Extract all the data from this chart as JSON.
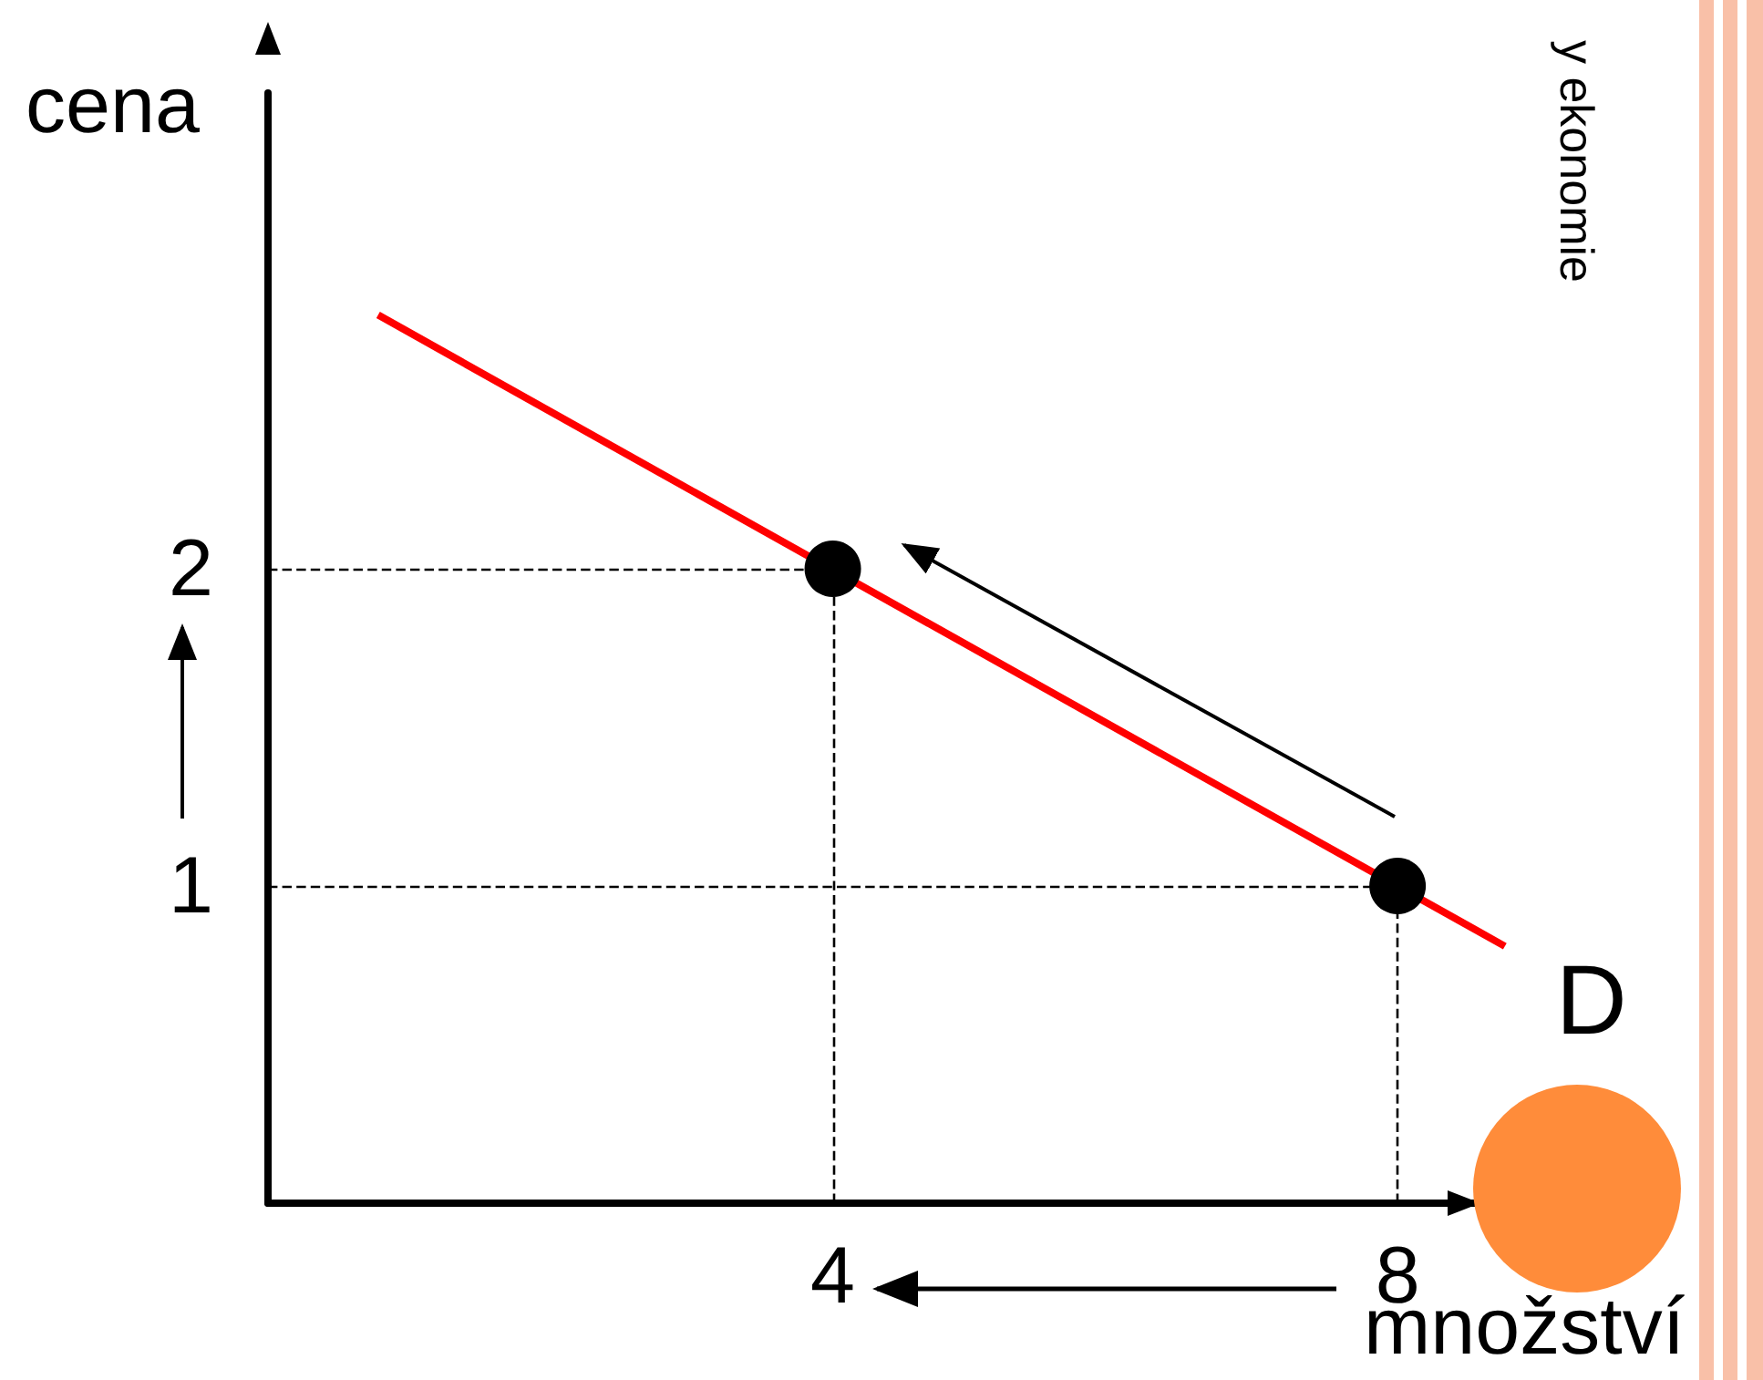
{
  "chart_data": {
    "type": "line",
    "xlabel": "množství",
    "ylabel": "cena",
    "xlim": [
      0,
      9
    ],
    "ylim": [
      0,
      3.5
    ],
    "xticks": [
      4,
      8
    ],
    "yticks": [
      1,
      2
    ],
    "grid": false,
    "legend": false,
    "marker": "none",
    "series": [
      {
        "name": "D",
        "color": "#ff0000",
        "x": [
          0.78,
          8.76
        ],
        "values": [
          2.8,
          0.81
        ]
      },
      {
        "type": "scatter",
        "marker": "circle",
        "color": "#000000",
        "x": [
          4,
          8
        ],
        "values": [
          2,
          1
        ]
      }
    ],
    "ref_lines": [
      {
        "axis": "x",
        "value": 4,
        "line_style": "dashed",
        "color": "#000000"
      },
      {
        "axis": "x",
        "value": 8,
        "line_style": "dashed",
        "color": "#000000"
      },
      {
        "axis": "y",
        "value": 1,
        "line_style": "dashed",
        "color": "#000000"
      },
      {
        "axis": "y",
        "value": 2,
        "line_style": "dashed",
        "color": "#000000"
      }
    ],
    "annotations": [
      "y ekonomie"
    ]
  }
}
